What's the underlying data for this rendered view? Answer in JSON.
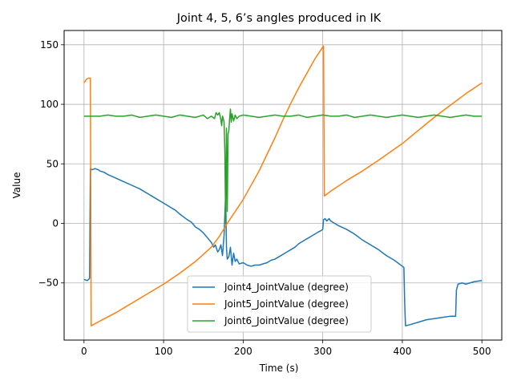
{
  "chart_data": {
    "type": "line",
    "title": "Joint 4, 5, 6’s angles produced in IK",
    "xlabel": "Time (s)",
    "ylabel": "Value",
    "xlim": [
      -25,
      525
    ],
    "ylim": [
      -98,
      162
    ],
    "xticks": [
      0,
      100,
      200,
      300,
      400,
      500
    ],
    "yticks": [
      -50,
      0,
      50,
      100,
      150
    ],
    "xtick_labels": [
      "0",
      "100",
      "200",
      "300",
      "400",
      "500"
    ],
    "ytick_labels": [
      "−50",
      "0",
      "50",
      "100",
      "150"
    ],
    "grid": true,
    "legend_position": "lower-center",
    "series": [
      {
        "name": "Joint4_JointValue (degree)",
        "color": "#1f77b4",
        "points": [
          [
            0,
            -47
          ],
          [
            4,
            -48
          ],
          [
            6,
            -47
          ],
          [
            7,
            -46
          ],
          [
            8,
            46
          ],
          [
            10,
            45
          ],
          [
            14,
            46
          ],
          [
            18,
            45
          ],
          [
            20,
            44
          ],
          [
            25,
            43
          ],
          [
            30,
            41
          ],
          [
            40,
            38
          ],
          [
            50,
            35
          ],
          [
            60,
            32
          ],
          [
            70,
            29
          ],
          [
            80,
            25
          ],
          [
            90,
            21
          ],
          [
            100,
            17
          ],
          [
            110,
            13
          ],
          [
            115,
            11
          ],
          [
            120,
            8
          ],
          [
            130,
            3
          ],
          [
            135,
            1
          ],
          [
            140,
            -3
          ],
          [
            145,
            -5
          ],
          [
            150,
            -8
          ],
          [
            155,
            -12
          ],
          [
            160,
            -16
          ],
          [
            163,
            -20
          ],
          [
            165,
            -18
          ],
          [
            168,
            -24
          ],
          [
            170,
            -22
          ],
          [
            172,
            -18
          ],
          [
            174,
            -27
          ],
          [
            176,
            -10
          ],
          [
            178,
            25
          ],
          [
            179,
            -20
          ],
          [
            180,
            -30
          ],
          [
            182,
            -28
          ],
          [
            184,
            -20
          ],
          [
            186,
            -35
          ],
          [
            188,
            -25
          ],
          [
            190,
            -32
          ],
          [
            192,
            -30
          ],
          [
            195,
            -34
          ],
          [
            200,
            -33
          ],
          [
            205,
            -35
          ],
          [
            210,
            -36
          ],
          [
            215,
            -35
          ],
          [
            220,
            -35
          ],
          [
            225,
            -34
          ],
          [
            230,
            -33
          ],
          [
            235,
            -31
          ],
          [
            240,
            -30
          ],
          [
            245,
            -28
          ],
          [
            250,
            -26
          ],
          [
            255,
            -24
          ],
          [
            260,
            -22
          ],
          [
            265,
            -20
          ],
          [
            270,
            -17
          ],
          [
            275,
            -15
          ],
          [
            280,
            -13
          ],
          [
            285,
            -11
          ],
          [
            290,
            -9
          ],
          [
            295,
            -7
          ],
          [
            298,
            -6
          ],
          [
            300,
            -5
          ],
          [
            301,
            3
          ],
          [
            303,
            4
          ],
          [
            305,
            2
          ],
          [
            308,
            4
          ],
          [
            310,
            2
          ],
          [
            315,
            0
          ],
          [
            320,
            -2
          ],
          [
            330,
            -5
          ],
          [
            340,
            -9
          ],
          [
            350,
            -14
          ],
          [
            360,
            -18
          ],
          [
            370,
            -22
          ],
          [
            380,
            -27
          ],
          [
            390,
            -31
          ],
          [
            400,
            -36
          ],
          [
            402,
            -37
          ],
          [
            403,
            -67
          ],
          [
            404,
            -86
          ],
          [
            410,
            -85
          ],
          [
            420,
            -83
          ],
          [
            430,
            -81
          ],
          [
            440,
            -80
          ],
          [
            450,
            -79
          ],
          [
            460,
            -78
          ],
          [
            467,
            -78
          ],
          [
            468,
            -56
          ],
          [
            470,
            -51
          ],
          [
            475,
            -50
          ],
          [
            480,
            -51
          ],
          [
            490,
            -49
          ],
          [
            500,
            -48
          ]
        ]
      },
      {
        "name": "Joint5_JointValue (degree)",
        "color": "#ff7f0e",
        "points": [
          [
            0,
            118
          ],
          [
            3,
            121
          ],
          [
            6,
            122
          ],
          [
            8,
            122
          ],
          [
            9,
            -86
          ],
          [
            20,
            -82
          ],
          [
            40,
            -75
          ],
          [
            60,
            -67
          ],
          [
            80,
            -59
          ],
          [
            100,
            -51
          ],
          [
            120,
            -42
          ],
          [
            140,
            -32
          ],
          [
            160,
            -20
          ],
          [
            170,
            -11
          ],
          [
            180,
            0
          ],
          [
            190,
            10
          ],
          [
            200,
            20
          ],
          [
            220,
            44
          ],
          [
            240,
            72
          ],
          [
            250,
            87
          ],
          [
            260,
            101
          ],
          [
            270,
            114
          ],
          [
            280,
            126
          ],
          [
            290,
            138
          ],
          [
            300,
            148
          ],
          [
            301,
            149
          ],
          [
            302,
            23
          ],
          [
            310,
            27
          ],
          [
            330,
            36
          ],
          [
            350,
            44
          ],
          [
            370,
            53
          ],
          [
            400,
            67
          ],
          [
            420,
            78
          ],
          [
            440,
            89
          ],
          [
            460,
            99
          ],
          [
            480,
            109
          ],
          [
            500,
            118
          ]
        ]
      },
      {
        "name": "Joint6_JointValue (degree)",
        "color": "#2ca02c",
        "points": [
          [
            0,
            90
          ],
          [
            10,
            90
          ],
          [
            20,
            90
          ],
          [
            30,
            91
          ],
          [
            40,
            90
          ],
          [
            50,
            90
          ],
          [
            60,
            91
          ],
          [
            70,
            89
          ],
          [
            80,
            90
          ],
          [
            90,
            91
          ],
          [
            100,
            90
          ],
          [
            110,
            89
          ],
          [
            120,
            91
          ],
          [
            130,
            90
          ],
          [
            140,
            89
          ],
          [
            150,
            91
          ],
          [
            155,
            88
          ],
          [
            160,
            90
          ],
          [
            164,
            88
          ],
          [
            166,
            93
          ],
          [
            168,
            91
          ],
          [
            170,
            93
          ],
          [
            172,
            87
          ],
          [
            173,
            82
          ],
          [
            174,
            90
          ],
          [
            175,
            88
          ],
          [
            176,
            85
          ],
          [
            177,
            60
          ],
          [
            178,
            0
          ],
          [
            179,
            80
          ],
          [
            180,
            10
          ],
          [
            181,
            75
          ],
          [
            182,
            78
          ],
          [
            183,
            88
          ],
          [
            184,
            96
          ],
          [
            185,
            85
          ],
          [
            186,
            92
          ],
          [
            188,
            86
          ],
          [
            190,
            91
          ],
          [
            192,
            88
          ],
          [
            195,
            90
          ],
          [
            200,
            91
          ],
          [
            210,
            90
          ],
          [
            220,
            89
          ],
          [
            230,
            90
          ],
          [
            240,
            91
          ],
          [
            250,
            90
          ],
          [
            260,
            90
          ],
          [
            270,
            91
          ],
          [
            280,
            89
          ],
          [
            290,
            90
          ],
          [
            300,
            91
          ],
          [
            310,
            90
          ],
          [
            320,
            90
          ],
          [
            330,
            91
          ],
          [
            340,
            89
          ],
          [
            350,
            90
          ],
          [
            360,
            91
          ],
          [
            370,
            90
          ],
          [
            380,
            89
          ],
          [
            390,
            90
          ],
          [
            400,
            91
          ],
          [
            410,
            90
          ],
          [
            420,
            89
          ],
          [
            430,
            90
          ],
          [
            440,
            91
          ],
          [
            450,
            90
          ],
          [
            460,
            89
          ],
          [
            470,
            90
          ],
          [
            480,
            91
          ],
          [
            490,
            90
          ],
          [
            500,
            90
          ]
        ]
      }
    ]
  }
}
